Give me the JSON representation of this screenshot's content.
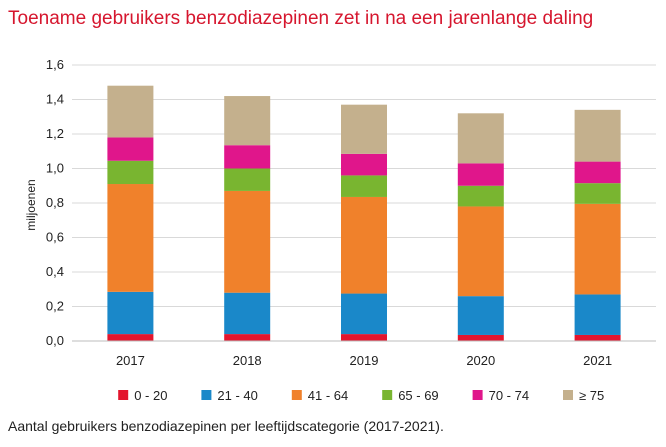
{
  "title": "Toename gebruikers benzodiazepinen zet in na een jarenlange daling",
  "caption": "Aantal gebruikers benzodiazepinen per leeftijdscategorie (2017-2021).",
  "chart_data": {
    "type": "bar",
    "stacked": true,
    "title": "Toename gebruikers benzodiazepinen zet in na een jarenlange daling",
    "xlabel": "",
    "ylabel": "miljoenen",
    "ylim": [
      0,
      1.6
    ],
    "yticks": [
      "0,0",
      "0,2",
      "0,4",
      "0,6",
      "0,8",
      "1,0",
      "1,2",
      "1,4",
      "1,6"
    ],
    "grid": true,
    "legend_position": "bottom",
    "categories": [
      "2017",
      "2018",
      "2019",
      "2020",
      "2021"
    ],
    "series": [
      {
        "name": "0 - 20",
        "color": "#e3152d",
        "values": [
          0.04,
          0.04,
          0.04,
          0.035,
          0.035
        ]
      },
      {
        "name": "21 - 40",
        "color": "#1a88c9",
        "values": [
          0.245,
          0.24,
          0.235,
          0.225,
          0.235
        ]
      },
      {
        "name": "41 - 64",
        "color": "#f0812b",
        "values": [
          0.625,
          0.59,
          0.56,
          0.52,
          0.525
        ]
      },
      {
        "name": "65 - 69",
        "color": "#79b530",
        "values": [
          0.135,
          0.13,
          0.125,
          0.12,
          0.12
        ]
      },
      {
        "name": "70 - 74",
        "color": "#e0168b",
        "values": [
          0.135,
          0.135,
          0.125,
          0.13,
          0.125
        ]
      },
      {
        "name": "≥ 75",
        "color": "#c4b08d",
        "values": [
          0.3,
          0.285,
          0.285,
          0.29,
          0.3
        ]
      }
    ]
  }
}
